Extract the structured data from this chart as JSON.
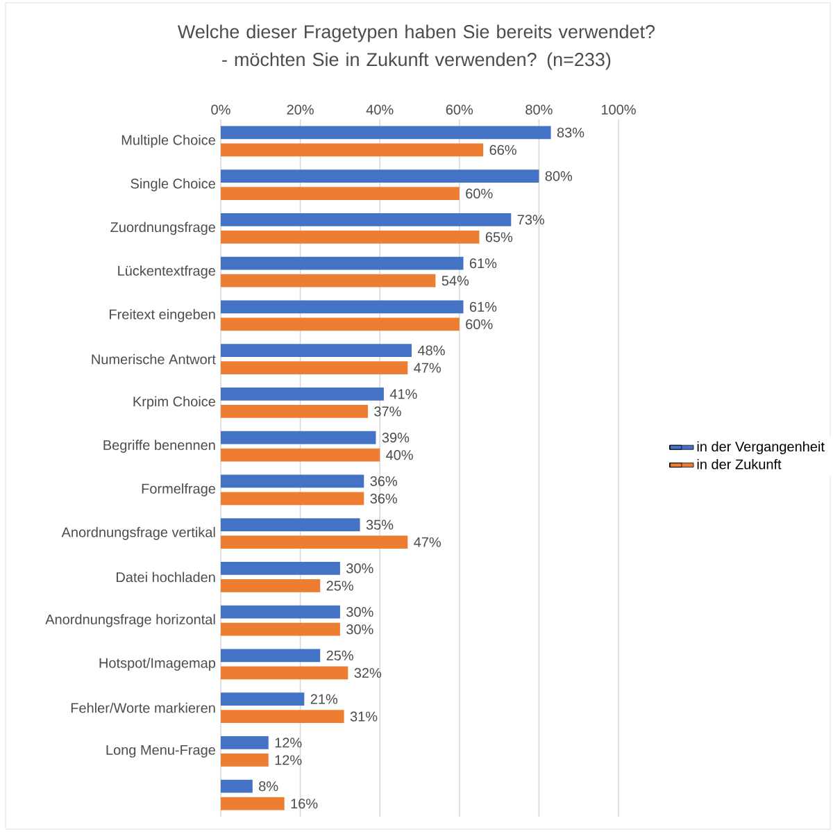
{
  "chart_data": {
    "type": "bar",
    "orientation": "horizontal",
    "title": "Welche dieser Fragetypen haben Sie bereits verwendet? - möchten Sie in Zukunft verwenden? (n=233)",
    "categories": [
      "Multiple Choice",
      "Single Choice",
      "Zuordnungsfrage",
      "Lückentextfrage",
      "Freitext eingeben",
      "Numerische Antwort",
      "Krpim Choice",
      "Begriffe benennen",
      "Formelfrage",
      "Anordnungsfrage vertikal",
      "Datei hochladen",
      "Anordnungsfrage horizontal",
      "Hotspot/Imagemap",
      "Fehler/Worte markieren",
      "Long Menu-Frage",
      null
    ],
    "series": [
      {
        "name": "in der Vergangenheit",
        "color": "#4472c4",
        "values": [
          83,
          80,
          73,
          61,
          61,
          48,
          41,
          39,
          36,
          35,
          30,
          30,
          25,
          21,
          12,
          8
        ],
        "value_labels": [
          "83%",
          "80%",
          "73%",
          "61%",
          "61%",
          "48%",
          "41%",
          "39%",
          "36%",
          "35%",
          "30%",
          "30%",
          "25%",
          "21%",
          "12%",
          "8%"
        ]
      },
      {
        "name": "in der Zukunft",
        "color": "#ed7d31",
        "values": [
          66,
          60,
          65,
          54,
          60,
          47,
          37,
          40,
          36,
          47,
          25,
          30,
          32,
          31,
          12,
          16
        ],
        "value_labels": [
          "66%",
          "60%",
          "65%",
          "54%",
          "60%",
          "47%",
          "37%",
          "40%",
          "36%",
          "47%",
          "25%",
          "30%",
          "32%",
          "31%",
          "12%",
          "16%"
        ]
      }
    ],
    "xlim": [
      0,
      100
    ],
    "xticks": [
      {
        "value": 0,
        "label": "0%"
      },
      {
        "value": 20,
        "label": "20%"
      },
      {
        "value": 40,
        "label": "40%"
      },
      {
        "value": 60,
        "label": "60%"
      },
      {
        "value": 80,
        "label": "80%"
      },
      {
        "value": 100,
        "label": "100%"
      }
    ],
    "grid": "x",
    "legend": "right"
  }
}
